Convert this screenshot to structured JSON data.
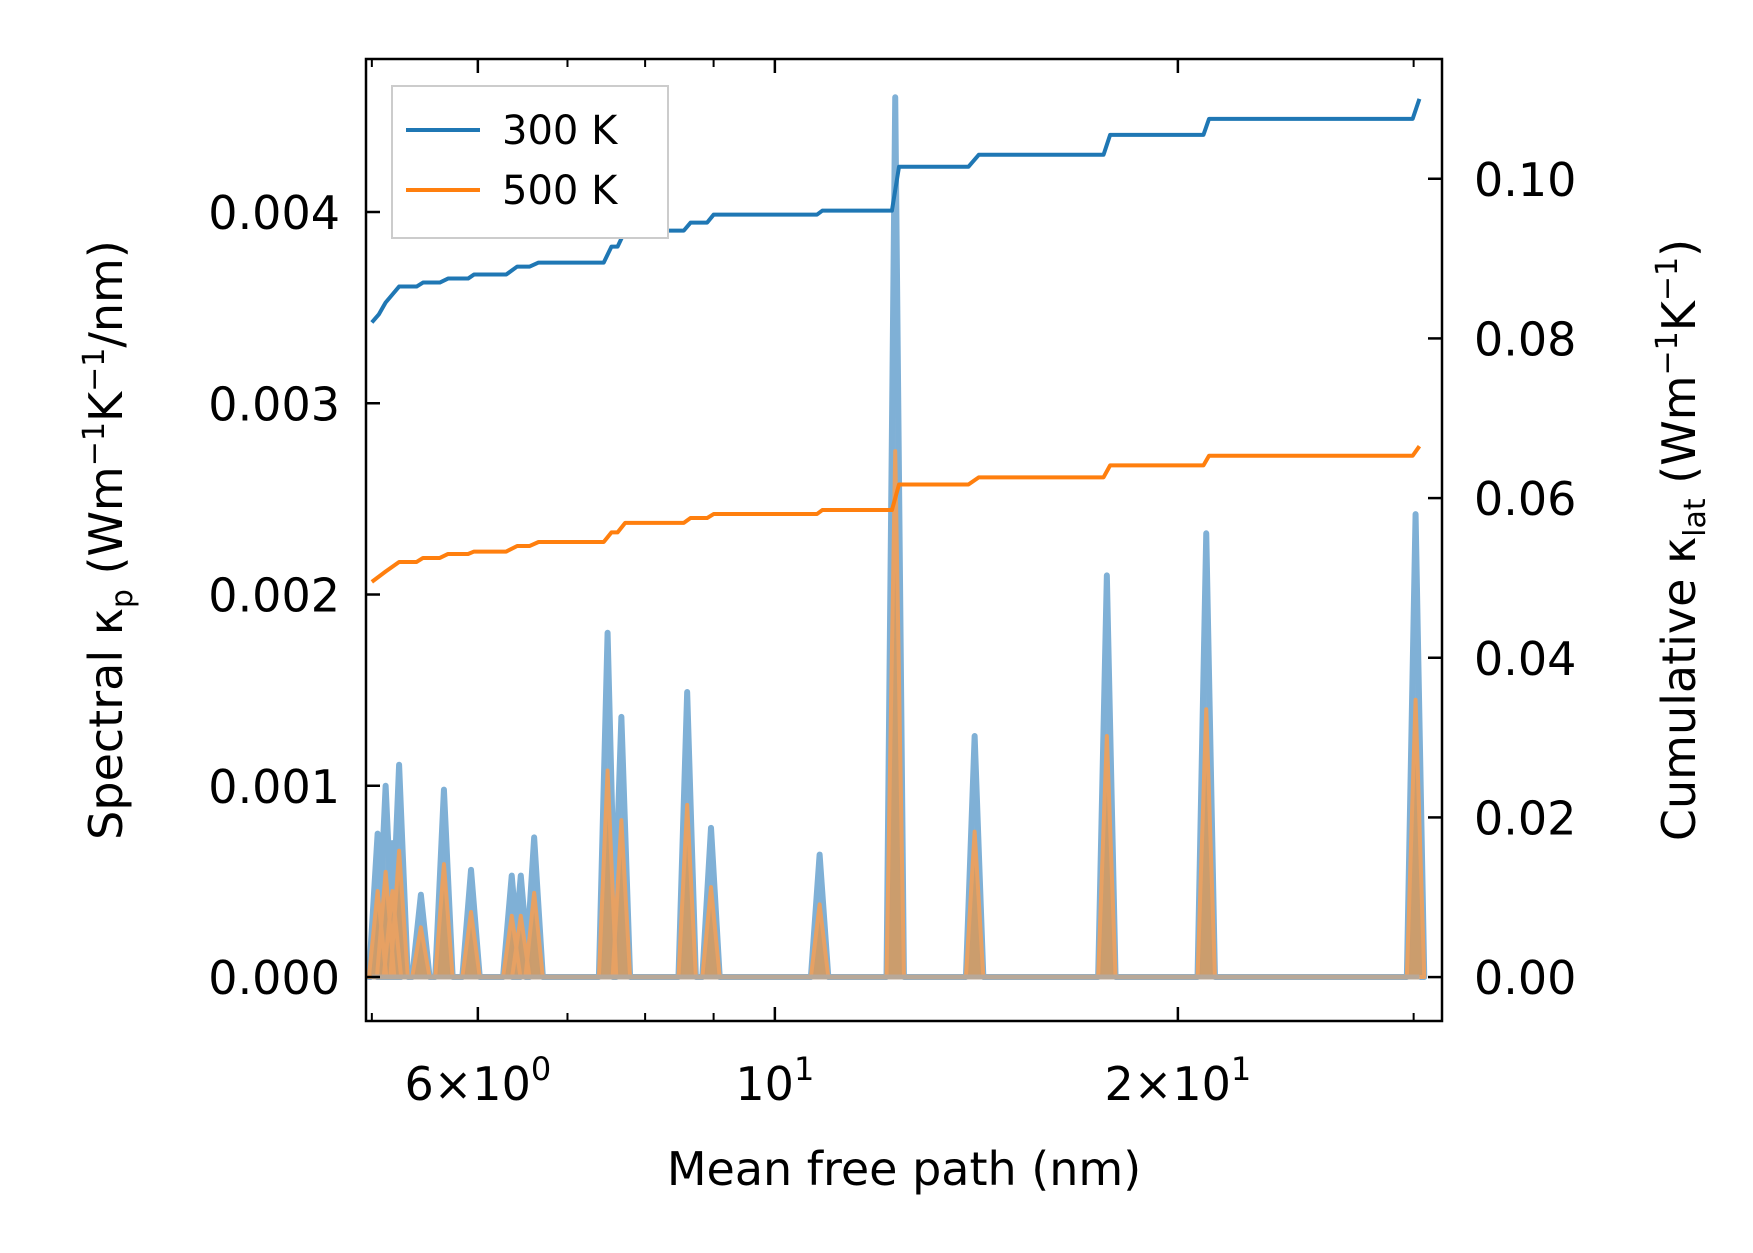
{
  "chart_data": {
    "type": "line",
    "xlabel": "Mean free path (nm)",
    "ylabel_left": {
      "main": "Spectral κ",
      "sub": "p",
      "unit_pre": " (Wm",
      "exp1": "−1",
      "mid": "K",
      "exp2": "−1",
      "unit_post": "/nm)"
    },
    "ylabel_right": {
      "main": "Cumulative κ",
      "sub": "lat",
      "unit_pre": " (Wm",
      "exp1": "−1",
      "mid": "K",
      "exp2": "−1",
      "unit_post": ")"
    },
    "xscale": "log",
    "xlim": [
      4.95,
      31.5
    ],
    "ylim_left": [
      -0.00023,
      0.0048
    ],
    "ylim_right": [
      -0.0055,
      0.115
    ],
    "xticks": [
      {
        "value": 6,
        "mantissa": "6",
        "times": "×",
        "base": "10",
        "exp": "0"
      },
      {
        "value": 10,
        "mantissa": "",
        "times": "",
        "base": "10",
        "exp": "1"
      },
      {
        "value": 20,
        "mantissa": "2",
        "times": "×",
        "base": "10",
        "exp": "1"
      }
    ],
    "xminor": [
      5,
      7,
      8,
      9,
      30
    ],
    "yticks_left": [
      "0.000",
      "0.001",
      "0.002",
      "0.003",
      "0.004"
    ],
    "yticks_left_values": [
      0,
      0.001,
      0.002,
      0.003,
      0.004
    ],
    "yticks_right": [
      "0.00",
      "0.02",
      "0.04",
      "0.06",
      "0.08",
      "0.10"
    ],
    "yticks_right_values": [
      0,
      0.02,
      0.04,
      0.06,
      0.08,
      0.1
    ],
    "legend": {
      "position": "upper-left",
      "entries": [
        "300 K",
        "500 K"
      ]
    },
    "colors": {
      "s300": "#1f77b4",
      "s500": "#ff7f0e",
      "fill300": "#6fa5cf",
      "fill500": "#d39a62"
    },
    "spectral_peaks": [
      {
        "x": 5.05,
        "h300": 0.00075,
        "h500": 0.00045
      },
      {
        "x": 5.12,
        "h300": 0.001,
        "h500": 0.00055
      },
      {
        "x": 5.18,
        "h300": 0.0007,
        "h500": 0.00045
      },
      {
        "x": 5.24,
        "h300": 0.00111,
        "h500": 0.00066
      },
      {
        "x": 5.44,
        "h300": 0.00043,
        "h500": 0.00026
      },
      {
        "x": 5.66,
        "h300": 0.00098,
        "h500": 0.00059
      },
      {
        "x": 5.93,
        "h300": 0.00056,
        "h500": 0.00034
      },
      {
        "x": 6.36,
        "h300": 0.00053,
        "h500": 0.00032
      },
      {
        "x": 6.46,
        "h300": 0.00053,
        "h500": 0.00032
      },
      {
        "x": 6.61,
        "h300": 0.00073,
        "h500": 0.00044
      },
      {
        "x": 7.5,
        "h300": 0.0018,
        "h500": 0.00108
      },
      {
        "x": 7.68,
        "h300": 0.00136,
        "h500": 0.00082
      },
      {
        "x": 8.6,
        "h300": 0.00149,
        "h500": 0.0009
      },
      {
        "x": 8.96,
        "h300": 0.00078,
        "h500": 0.00047
      },
      {
        "x": 10.8,
        "h300": 0.00064,
        "h500": 0.00038
      },
      {
        "x": 12.3,
        "h300": 0.0046,
        "h500": 0.00275
      },
      {
        "x": 14.1,
        "h300": 0.00126,
        "h500": 0.00076
      },
      {
        "x": 17.7,
        "h300": 0.0021,
        "h500": 0.00126
      },
      {
        "x": 21.0,
        "h300": 0.00232,
        "h500": 0.0014
      },
      {
        "x": 30.1,
        "h300": 0.00242,
        "h500": 0.00145
      }
    ],
    "spectral_range": [
      5.0,
      30.3
    ],
    "cumulative_300K": {
      "x": [
        5.0,
        5.06,
        5.12,
        5.18,
        5.24,
        5.4,
        5.46,
        5.62,
        5.7,
        5.9,
        5.96,
        6.3,
        6.42,
        6.56,
        6.66,
        7.45,
        7.55,
        7.63,
        7.73,
        8.55,
        8.65,
        8.9,
        9.0,
        10.75,
        10.85,
        12.23,
        12.38,
        13.95,
        14.2,
        17.6,
        17.8,
        20.9,
        21.1,
        29.95,
        30.3
      ],
      "y": [
        0.082,
        0.083,
        0.0845,
        0.0855,
        0.0865,
        0.0865,
        0.087,
        0.087,
        0.0875,
        0.0875,
        0.088,
        0.088,
        0.089,
        0.089,
        0.0895,
        0.0895,
        0.0915,
        0.0915,
        0.0935,
        0.0935,
        0.0945,
        0.0945,
        0.0955,
        0.0955,
        0.096,
        0.096,
        0.1015,
        0.1015,
        0.103,
        0.103,
        0.1055,
        0.1055,
        0.1075,
        0.1075,
        0.11
      ]
    },
    "cumulative_500K": {
      "x": [
        5.0,
        5.12,
        5.24,
        5.4,
        5.46,
        5.62,
        5.7,
        5.9,
        5.96,
        6.3,
        6.42,
        6.56,
        6.66,
        7.45,
        7.55,
        7.63,
        7.73,
        8.55,
        8.65,
        8.9,
        9.0,
        10.75,
        10.85,
        12.23,
        12.38,
        13.95,
        14.2,
        17.6,
        17.8,
        20.9,
        21.1,
        29.95,
        30.3
      ],
      "y": [
        0.0495,
        0.0508,
        0.052,
        0.052,
        0.0525,
        0.0525,
        0.053,
        0.053,
        0.0533,
        0.0533,
        0.054,
        0.054,
        0.0545,
        0.0545,
        0.0557,
        0.0557,
        0.0569,
        0.0569,
        0.0575,
        0.0575,
        0.058,
        0.058,
        0.0585,
        0.0585,
        0.0617,
        0.0617,
        0.0626,
        0.0626,
        0.0641,
        0.0641,
        0.0653,
        0.0653,
        0.0665
      ]
    }
  }
}
